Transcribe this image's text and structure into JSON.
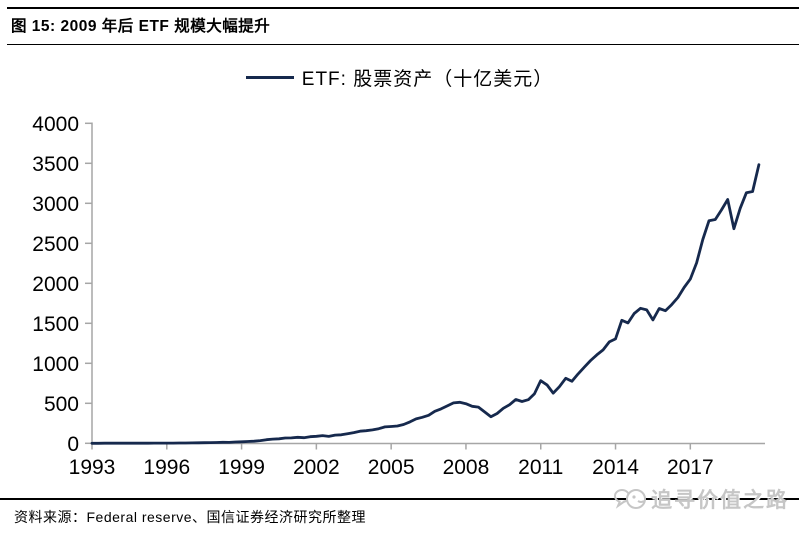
{
  "header": {
    "title": "图 15:  2009 年后 ETF 规模大幅提升"
  },
  "legend": {
    "label": "ETF:  股票资产（十亿美元）"
  },
  "footer": {
    "source": "资料来源：Federal reserve、国信证券经济研究所整理",
    "watermark": "追寻价值之路"
  },
  "colors": {
    "line": "#16294d",
    "axis": "#a6a6a6",
    "tick_label": "#000000",
    "watermark": "#c6c6c6"
  },
  "chart_data": {
    "type": "line",
    "title": "图 15: 2009 年后 ETF 规模大幅提升",
    "xlabel": "",
    "ylabel": "",
    "x_ticks": [
      1993,
      1996,
      1999,
      2002,
      2005,
      2008,
      2011,
      2014,
      2017
    ],
    "y_ticks": [
      0,
      500,
      1000,
      1500,
      2000,
      2500,
      3000,
      3500,
      4000
    ],
    "xlim": [
      1993,
      2020
    ],
    "ylim": [
      0,
      4000
    ],
    "grid": false,
    "legend_position": "top-center",
    "series": [
      {
        "name": "ETF: 股票资产（十亿美元）",
        "points": [
          [
            1993,
            0.4
          ],
          [
            1993.25,
            0.6
          ],
          [
            1993.5,
            0.8
          ],
          [
            1993.75,
            1.1
          ],
          [
            1994,
            1.2
          ],
          [
            1994.25,
            1.3
          ],
          [
            1994.5,
            1.4
          ],
          [
            1994.75,
            1.6
          ],
          [
            1995,
            1.7
          ],
          [
            1995.25,
            1.8
          ],
          [
            1995.5,
            2
          ],
          [
            1995.75,
            2.3
          ],
          [
            1996,
            2.6
          ],
          [
            1996.25,
            3
          ],
          [
            1996.5,
            3.5
          ],
          [
            1996.75,
            4.2
          ],
          [
            1997,
            5
          ],
          [
            1997.25,
            6
          ],
          [
            1997.5,
            7.2
          ],
          [
            1997.75,
            8.8
          ],
          [
            1998,
            10.5
          ],
          [
            1998.25,
            12.5
          ],
          [
            1998.5,
            11.5
          ],
          [
            1998.75,
            15.8
          ],
          [
            1999,
            19
          ],
          [
            1999.25,
            23
          ],
          [
            1999.5,
            26
          ],
          [
            1999.75,
            34
          ],
          [
            2000,
            45
          ],
          [
            2000.25,
            52
          ],
          [
            2000.5,
            56
          ],
          [
            2000.75,
            66
          ],
          [
            2001,
            68
          ],
          [
            2001.25,
            75
          ],
          [
            2001.5,
            70
          ],
          [
            2001.75,
            83
          ],
          [
            2002,
            88
          ],
          [
            2002.25,
            96
          ],
          [
            2002.5,
            86
          ],
          [
            2002.75,
            102
          ],
          [
            2003,
            106
          ],
          [
            2003.25,
            120
          ],
          [
            2003.5,
            134
          ],
          [
            2003.75,
            151
          ],
          [
            2004,
            158
          ],
          [
            2004.25,
            168
          ],
          [
            2004.5,
            182
          ],
          [
            2004.75,
            205
          ],
          [
            2005,
            210
          ],
          [
            2005.25,
            216
          ],
          [
            2005.5,
            235
          ],
          [
            2005.75,
            268
          ],
          [
            2006,
            305
          ],
          [
            2006.25,
            325
          ],
          [
            2006.5,
            350
          ],
          [
            2006.75,
            400
          ],
          [
            2007,
            430
          ],
          [
            2007.25,
            468
          ],
          [
            2007.5,
            505
          ],
          [
            2007.75,
            512
          ],
          [
            2008,
            495
          ],
          [
            2008.25,
            462
          ],
          [
            2008.5,
            452
          ],
          [
            2008.75,
            392
          ],
          [
            2009,
            332
          ],
          [
            2009.25,
            372
          ],
          [
            2009.5,
            438
          ],
          [
            2009.75,
            482
          ],
          [
            2010,
            548
          ],
          [
            2010.25,
            522
          ],
          [
            2010.5,
            545
          ],
          [
            2010.75,
            620
          ],
          [
            2011,
            782
          ],
          [
            2011.25,
            730
          ],
          [
            2011.5,
            628
          ],
          [
            2011.75,
            708
          ],
          [
            2012,
            812
          ],
          [
            2012.25,
            775
          ],
          [
            2012.5,
            868
          ],
          [
            2012.75,
            952
          ],
          [
            2013,
            1035
          ],
          [
            2013.25,
            1105
          ],
          [
            2013.5,
            1168
          ],
          [
            2013.75,
            1268
          ],
          [
            2014,
            1305
          ],
          [
            2014.25,
            1538
          ],
          [
            2014.5,
            1505
          ],
          [
            2014.75,
            1622
          ],
          [
            2015,
            1688
          ],
          [
            2015.25,
            1668
          ],
          [
            2015.5,
            1542
          ],
          [
            2015.75,
            1685
          ],
          [
            2016,
            1658
          ],
          [
            2016.25,
            1732
          ],
          [
            2016.5,
            1822
          ],
          [
            2016.75,
            1948
          ],
          [
            2017,
            2052
          ],
          [
            2017.25,
            2255
          ],
          [
            2017.5,
            2548
          ],
          [
            2017.75,
            2782
          ],
          [
            2018,
            2798
          ],
          [
            2018.25,
            2918
          ],
          [
            2018.5,
            3048
          ],
          [
            2018.75,
            2682
          ],
          [
            2019,
            2938
          ],
          [
            2019.25,
            3132
          ],
          [
            2019.5,
            3148
          ],
          [
            2019.75,
            3482
          ]
        ]
      }
    ]
  }
}
